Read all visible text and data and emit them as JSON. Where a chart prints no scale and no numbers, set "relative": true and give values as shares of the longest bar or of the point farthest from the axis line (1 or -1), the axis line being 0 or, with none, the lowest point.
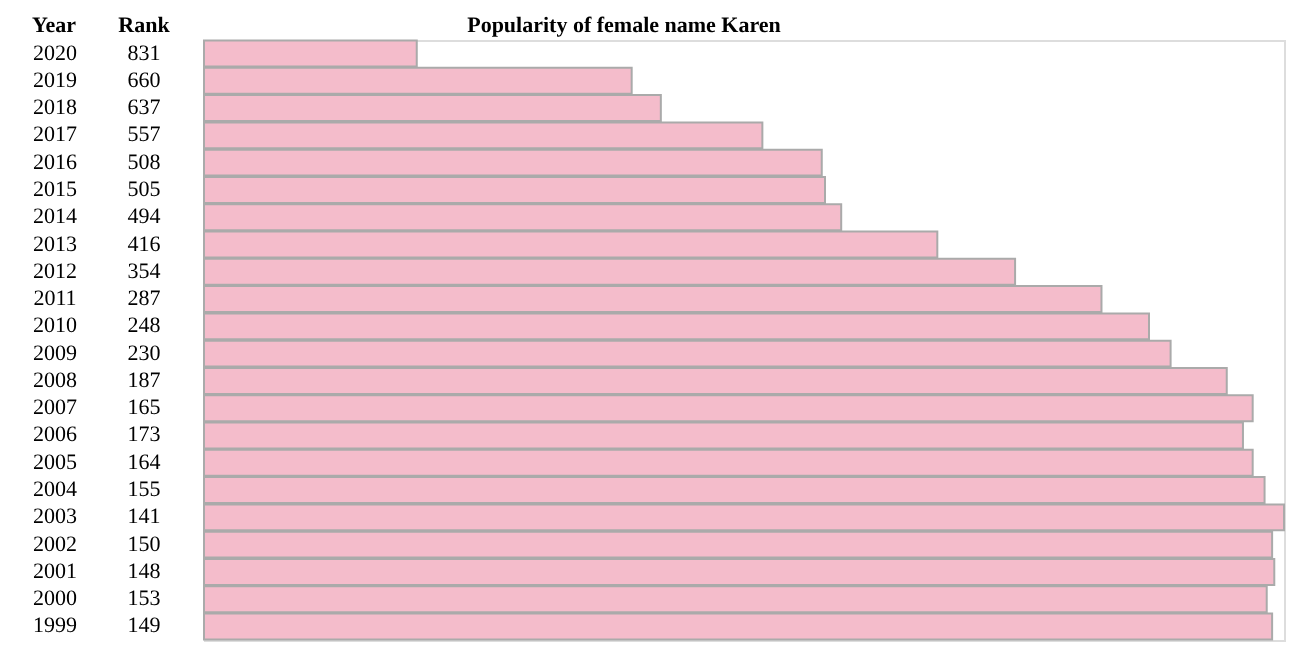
{
  "chart_data": {
    "type": "bar",
    "orientation": "horizontal",
    "relative": true,
    "title": "Popularity of female name Karen",
    "ylabel": "Year",
    "categories": [
      "2020",
      "2019",
      "2018",
      "2017",
      "2016",
      "2015",
      "2014",
      "2013",
      "2012",
      "2011",
      "2010",
      "2009",
      "2008",
      "2007",
      "2006",
      "2005",
      "2004",
      "2003",
      "2002",
      "2001",
      "2000",
      "1999"
    ],
    "values": [
      0.197,
      0.396,
      0.423,
      0.517,
      0.572,
      0.575,
      0.59,
      0.679,
      0.751,
      0.831,
      0.875,
      0.895,
      0.947,
      0.971,
      0.962,
      0.971,
      0.982,
      1,
      0.989,
      0.991,
      0.984,
      0.989
    ],
    "color": "#f4bccb",
    "annotations": [
      "Rank",
      "831",
      "660",
      "637",
      "557",
      "508",
      "505",
      "494",
      "416",
      "354",
      "287",
      "248",
      "230",
      "187",
      "165",
      "173",
      "164",
      "155",
      "141",
      "150",
      "148",
      "153",
      "149"
    ],
    "grid": false
  }
}
